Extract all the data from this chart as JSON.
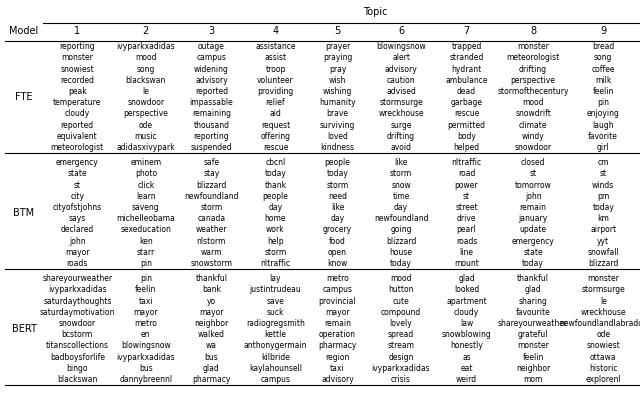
{
  "title": "Topic",
  "col_header": [
    "Model",
    "1",
    "2",
    "3",
    "4",
    "5",
    "6",
    "7",
    "8",
    "9"
  ],
  "sections": [
    {
      "model": "FTE",
      "topics": [
        [
          "reporting",
          "monster",
          "snowiest",
          "recorded",
          "peak",
          "temperature",
          "cloudy",
          "reported",
          "equivalent",
          "meteorologist"
        ],
        [
          "ivyparkxadidas",
          "mood",
          "song",
          "blackswan",
          "le",
          "snowdoor",
          "perspective",
          "ode",
          "music",
          "adidasxivypark"
        ],
        [
          "outage",
          "campus",
          "widening",
          "advisory",
          "reported",
          "impassable",
          "remaining",
          "thousand",
          "reporting",
          "suspended"
        ],
        [
          "assistance",
          "assist",
          "troop",
          "volunteer",
          "providing",
          "relief",
          "aid",
          "request",
          "offering",
          "rescue"
        ],
        [
          "prayer",
          "praying",
          "pray",
          "wish",
          "wishing",
          "humanity",
          "brave",
          "surviving",
          "loved",
          "kindness"
        ],
        [
          "blowingsnow",
          "alert",
          "advisory",
          "caution",
          "advised",
          "stormsurge",
          "wreckhouse",
          "surge",
          "drifting",
          "avoid"
        ],
        [
          "trapped",
          "stranded",
          "hydrant",
          "ambulance",
          "dead",
          "garbage",
          "rescue",
          "permitted",
          "body",
          "helped"
        ],
        [
          "monster",
          "meteorologist",
          "drifting",
          "perspective",
          "stormofthecentury",
          "mood",
          "snowdrift",
          "climate",
          "windy",
          "snowdoor"
        ],
        [
          "bread",
          "song",
          "coffee",
          "milk",
          "feelin",
          "pin",
          "enjoying",
          "laugh",
          "favorite",
          "girl"
        ]
      ]
    },
    {
      "model": "BTM",
      "topics": [
        [
          "emergency",
          "state",
          "st",
          "city",
          "cityofstjohns",
          "says",
          "declared",
          "john",
          "mayor",
          "roads"
        ],
        [
          "eminem",
          "photo",
          "click",
          "learn",
          "saveng",
          "michelleobama",
          "sexeducation",
          "ken",
          "starr",
          "pin"
        ],
        [
          "safe",
          "stay",
          "blizzard",
          "newfoundland",
          "storm",
          "canada",
          "weather",
          "nlstorm",
          "warm",
          "snowstorm"
        ],
        [
          "cbcnl",
          "today",
          "thank",
          "people",
          "day",
          "home",
          "work",
          "help",
          "storm",
          "nltraffic"
        ],
        [
          "people",
          "today",
          "storm",
          "need",
          "like",
          "day",
          "grocery",
          "food",
          "open",
          "know"
        ],
        [
          "like",
          "storm",
          "snow",
          "time",
          "day",
          "newfoundland",
          "going",
          "blizzard",
          "house",
          "today"
        ],
        [
          "nltraffic",
          "road",
          "power",
          "st",
          "street",
          "drive",
          "pearl",
          "roads",
          "line",
          "mount"
        ],
        [
          "closed",
          "st",
          "tomorrow",
          "john",
          "remain",
          "january",
          "update",
          "emergency",
          "state",
          "today"
        ],
        [
          "cm",
          "st",
          "winds",
          "pm",
          "today",
          "km",
          "airport",
          "yyt",
          "snowfall",
          "blizzard"
        ]
      ]
    },
    {
      "model": "BERT",
      "topics": [
        [
          "shareyourweather",
          "ivyparkxadidas",
          "saturdaythoughts",
          "saturdaymotivation",
          "snowdoor",
          "bcstorm",
          "titanscollections",
          "badboysforlife",
          "bingo",
          "blackswan"
        ],
        [
          "pin",
          "feelin",
          "taxi",
          "mayor",
          "metro",
          "en",
          "blowingsnow",
          "ivyparkxadidas",
          "bus",
          "dannybreennl"
        ],
        [
          "thankful",
          "bank",
          "yo",
          "mayor",
          "neighbor",
          "walked",
          "wa",
          "bus",
          "glad",
          "pharmacy"
        ],
        [
          "lay",
          "justintrudeau",
          "save",
          "suck",
          "radiogregsmith",
          "kettle",
          "anthonygermain",
          "kilbride",
          "kaylahounsell",
          "campus"
        ],
        [
          "metro",
          "campus",
          "provincial",
          "mayor",
          "remain",
          "operation",
          "pharmacy",
          "region",
          "taxi",
          "advisory"
        ],
        [
          "mood",
          "hutton",
          "cute",
          "compound",
          "lovely",
          "spread",
          "stream",
          "design",
          "ivyparkxadidas",
          "crisis"
        ],
        [
          "glad",
          "looked",
          "apartment",
          "cloudy",
          "law",
          "snowblowing",
          "honestly",
          "as",
          "eat",
          "weird"
        ],
        [
          "thankful",
          "glad",
          "sharing",
          "favourite",
          "shareyourweather",
          "grateful",
          "monster",
          "feelin",
          "neighbor",
          "mom"
        ],
        [
          "monster",
          "stormsurge",
          "le",
          "wreckhouse",
          "newfoundlandlabrador",
          "ode",
          "snowiest",
          "ottawa",
          "historic",
          "explorenl"
        ]
      ]
    }
  ],
  "background_color": "#ffffff",
  "font_size": 5.5,
  "header_font_size": 7.0,
  "fig_width": 6.4,
  "fig_height": 3.93,
  "dpi": 100
}
